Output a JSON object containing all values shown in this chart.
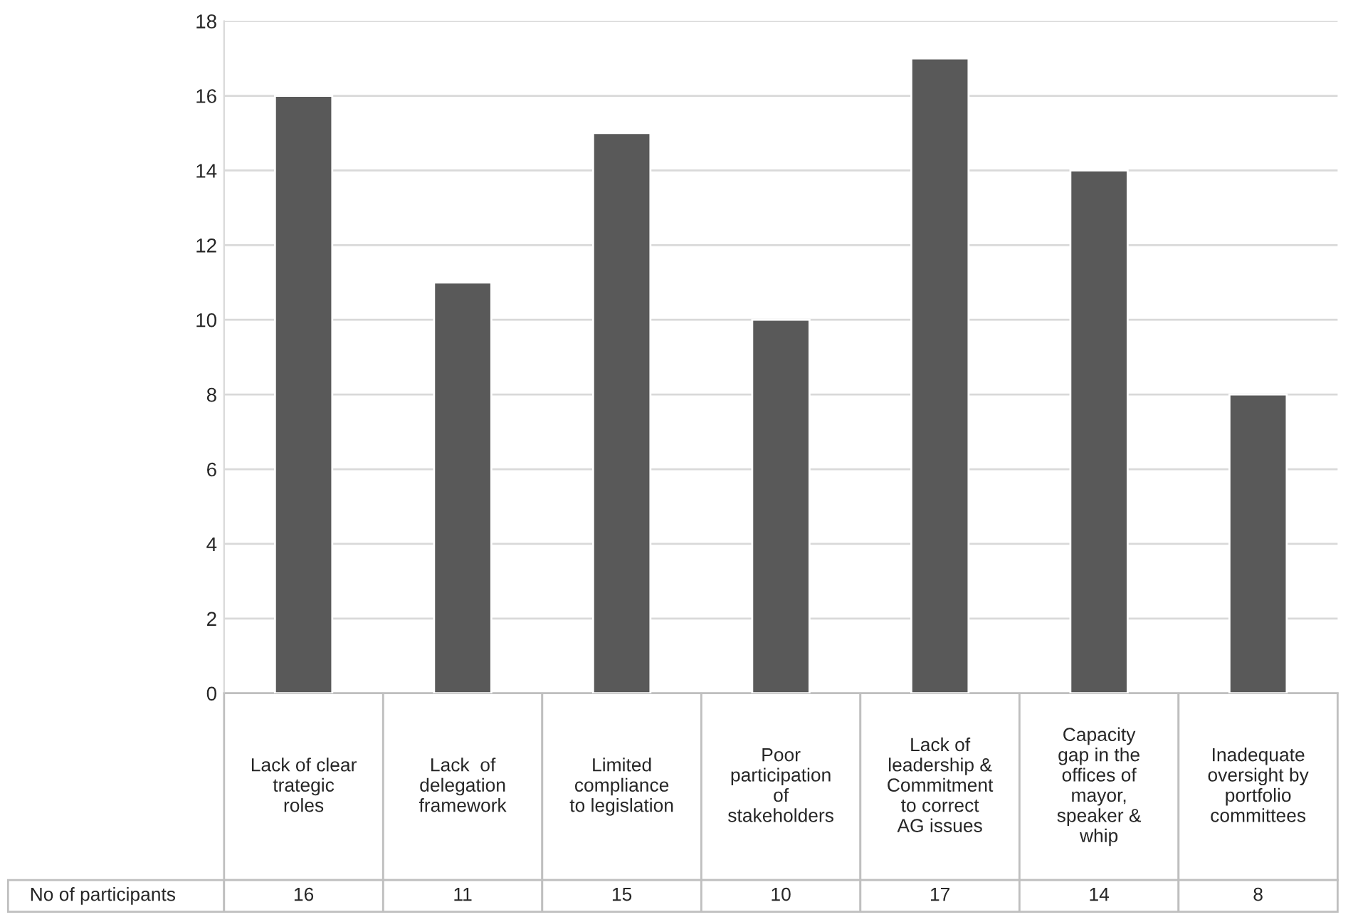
{
  "chart_data": {
    "type": "bar",
    "categories": [
      "Lack of clear\ntrategic\nroles",
      "Lack  of\ndelegation\nframework",
      "Limited\ncompliance\nto legislation",
      "Poor\nparticipation\nof\nstakeholders",
      "Lack of\nleadership &\nCommitment\nto correct\nAG issues",
      "Capacity\ngap in the\noffices of\nmayor,\nspeaker &\nwhip",
      "Inadequate\noversight by\nportfolio\ncommittees"
    ],
    "series": [
      {
        "name": "No of participants",
        "color": "#595959",
        "values": [
          16,
          11,
          15,
          10,
          17,
          14,
          8
        ]
      }
    ],
    "ylim": [
      0,
      18
    ],
    "yticks": [
      0,
      2,
      4,
      6,
      8,
      10,
      12,
      14,
      16,
      18
    ],
    "grid": "y",
    "data_labels": true
  }
}
